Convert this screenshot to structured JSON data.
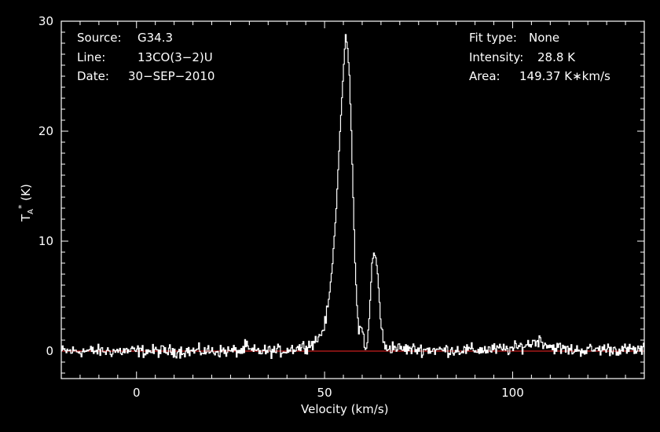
{
  "info_left": [
    {
      "key": "Source:",
      "value": "G34.3"
    },
    {
      "key": "Line:",
      "value": "13CO(3−2)U"
    },
    {
      "key": "Date:",
      "value": "30−SEP−2010"
    }
  ],
  "info_right": [
    {
      "key": "Fit type:",
      "value": "None"
    },
    {
      "key": "Intensity:",
      "value": "28.8 K"
    },
    {
      "key": "Area:",
      "value": "149.37 K∗km/s"
    }
  ],
  "chart_data": {
    "type": "line",
    "xlabel": "Velocity (km/s)",
    "ylabel_main": "T",
    "ylabel_sub": "A",
    "ylabel_sup": "*",
    "ylabel_unit": " (K)",
    "xlim": [
      -20,
      135
    ],
    "ylim": [
      -2.5,
      30
    ],
    "x_ticks": [
      0,
      50,
      100
    ],
    "x_tick_labels": [
      "0",
      "50",
      "100"
    ],
    "y_ticks": [
      0,
      10,
      20,
      30
    ],
    "y_tick_labels": [
      "0",
      "10",
      "20",
      "30"
    ],
    "baseline_value": 0,
    "colors": {
      "spectrum": "#ffffff",
      "baseline": "#c81e1e",
      "axes": "#ffffff"
    },
    "series": [
      {
        "x": [
          -20,
          28,
          29,
          30,
          38,
          41,
          44,
          46,
          47,
          48,
          49,
          50,
          51,
          52,
          53,
          54,
          55,
          55.5,
          56,
          56.5,
          57,
          57.5,
          58,
          58.5,
          59,
          59.5,
          60,
          60.5,
          61,
          61.5,
          62,
          62.5,
          63,
          63.5,
          64,
          64.5,
          65,
          65.5,
          66,
          67,
          68,
          70,
          80,
          90,
          100,
          104,
          106,
          107,
          108,
          110,
          115,
          120,
          125,
          130,
          135
        ],
        "y": [
          0,
          0,
          0.5,
          0,
          0,
          0.2,
          0.4,
          0.6,
          0.8,
          1.1,
          1.6,
          2.5,
          4.5,
          8.0,
          13.0,
          20.0,
          26.0,
          28.8,
          27.5,
          25.0,
          20.0,
          14.0,
          8.0,
          4.0,
          2.2,
          2.0,
          1.8,
          1.0,
          0.4,
          1.5,
          4.5,
          8.0,
          8.9,
          8.5,
          7.0,
          4.5,
          2.2,
          0.8,
          0.3,
          0.3,
          0.4,
          0.2,
          0.1,
          0.1,
          0.2,
          0.6,
          0.9,
          1.0,
          0.8,
          0.4,
          0.1,
          0.1,
          0.2,
          0.1,
          0.1
        ]
      }
    ],
    "noise_rms": 0.35
  }
}
